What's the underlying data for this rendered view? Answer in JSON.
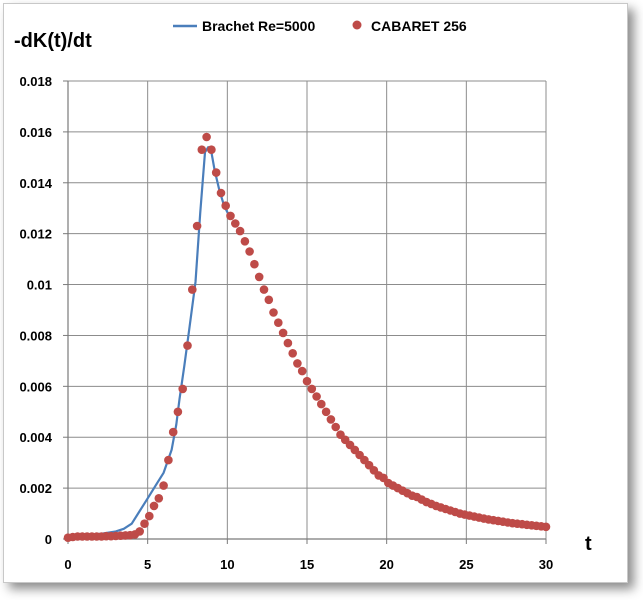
{
  "chart_data": {
    "type": "line",
    "title": "",
    "ylabel": "-dK(t)/dt",
    "xlabel": "t",
    "xlim": [
      0,
      30
    ],
    "ylim": [
      0,
      0.018
    ],
    "x_ticks": [
      0,
      5,
      10,
      15,
      20,
      25,
      30
    ],
    "y_ticks": [
      0,
      0.002,
      0.004,
      0.006,
      0.008,
      0.01,
      0.012,
      0.014,
      0.016,
      0.018
    ],
    "x_tick_labels": [
      "0",
      "5",
      "10",
      "15",
      "20",
      "25",
      "30"
    ],
    "y_tick_labels": [
      "0",
      "0.002",
      "0.004",
      "0.006",
      "0.008",
      "0.01",
      "0.012",
      "0.014",
      "0.016",
      "0.018"
    ],
    "grid": true,
    "legend_position": "top",
    "series": [
      {
        "name": "Brachet Re=5000",
        "style": "line",
        "color": "#4a7ebb",
        "points": [
          [
            0,
            0.0001
          ],
          [
            1,
            0.00015
          ],
          [
            2,
            0.0002
          ],
          [
            3,
            0.0003
          ],
          [
            3.5,
            0.0004
          ],
          [
            4,
            0.0006
          ],
          [
            4.5,
            0.0011
          ],
          [
            5,
            0.0016
          ],
          [
            5.5,
            0.0021
          ],
          [
            6,
            0.0026
          ],
          [
            6.5,
            0.0035
          ],
          [
            6.8,
            0.0045
          ],
          [
            7,
            0.0055
          ],
          [
            7.3,
            0.0068
          ],
          [
            7.6,
            0.0082
          ],
          [
            8,
            0.0101
          ],
          [
            8.3,
            0.0128
          ],
          [
            8.6,
            0.0152
          ],
          [
            8.8,
            0.0154
          ],
          [
            9,
            0.0152
          ],
          [
            9.2,
            0.0145
          ],
          [
            9.5,
            0.0137
          ],
          [
            9.8,
            0.0131
          ],
          [
            10.2,
            0.0126
          ]
        ]
      },
      {
        "name": "CABARET 256",
        "style": "markers",
        "color": "#be4b48",
        "points": [
          [
            0,
            5e-05
          ],
          [
            0.3,
            8e-05
          ],
          [
            0.6,
            0.0001
          ],
          [
            0.9,
            0.0001
          ],
          [
            1.2,
            0.0001
          ],
          [
            1.5,
            0.0001
          ],
          [
            1.8,
            0.0001
          ],
          [
            2.1,
            0.0001
          ],
          [
            2.4,
            0.00011
          ],
          [
            2.7,
            0.00011
          ],
          [
            3.0,
            0.00012
          ],
          [
            3.3,
            0.00013
          ],
          [
            3.6,
            0.00014
          ],
          [
            3.9,
            0.00015
          ],
          [
            4.2,
            0.00018
          ],
          [
            4.5,
            0.0003
          ],
          [
            4.8,
            0.0006
          ],
          [
            5.1,
            0.0009
          ],
          [
            5.4,
            0.0013
          ],
          [
            5.7,
            0.0016
          ],
          [
            6.0,
            0.0021
          ],
          [
            6.3,
            0.0031
          ],
          [
            6.6,
            0.0042
          ],
          [
            6.9,
            0.005
          ],
          [
            7.2,
            0.0059
          ],
          [
            7.5,
            0.0076
          ],
          [
            7.8,
            0.0098
          ],
          [
            8.1,
            0.0123
          ],
          [
            8.4,
            0.0153
          ],
          [
            8.7,
            0.0158
          ],
          [
            9.0,
            0.0153
          ],
          [
            9.3,
            0.0144
          ],
          [
            9.6,
            0.0136
          ],
          [
            9.9,
            0.0131
          ],
          [
            10.2,
            0.0127
          ],
          [
            10.5,
            0.0124
          ],
          [
            10.8,
            0.0121
          ],
          [
            11.1,
            0.0117
          ],
          [
            11.4,
            0.0113
          ],
          [
            11.7,
            0.0108
          ],
          [
            12.0,
            0.0103
          ],
          [
            12.3,
            0.0098
          ],
          [
            12.6,
            0.0094
          ],
          [
            12.9,
            0.0089
          ],
          [
            13.2,
            0.0085
          ],
          [
            13.5,
            0.0081
          ],
          [
            13.8,
            0.0077
          ],
          [
            14.1,
            0.0073
          ],
          [
            14.4,
            0.0069
          ],
          [
            14.7,
            0.0066
          ],
          [
            15.0,
            0.0062
          ],
          [
            15.3,
            0.0059
          ],
          [
            15.6,
            0.0056
          ],
          [
            15.9,
            0.0053
          ],
          [
            16.2,
            0.005
          ],
          [
            16.5,
            0.0047
          ],
          [
            16.8,
            0.0044
          ],
          [
            17.1,
            0.0041
          ],
          [
            17.4,
            0.0039
          ],
          [
            17.7,
            0.0037
          ],
          [
            18.0,
            0.0035
          ],
          [
            18.3,
            0.0033
          ],
          [
            18.6,
            0.0031
          ],
          [
            18.9,
            0.0029
          ],
          [
            19.2,
            0.0027
          ],
          [
            19.5,
            0.0025
          ],
          [
            19.8,
            0.0024
          ],
          [
            20.1,
            0.0022
          ],
          [
            20.4,
            0.0021
          ],
          [
            20.7,
            0.002
          ],
          [
            21.0,
            0.0019
          ],
          [
            21.3,
            0.0018
          ],
          [
            21.6,
            0.0017
          ],
          [
            21.9,
            0.00165
          ],
          [
            22.2,
            0.00155
          ],
          [
            22.5,
            0.00145
          ],
          [
            22.8,
            0.00138
          ],
          [
            23.1,
            0.0013
          ],
          [
            23.4,
            0.00124
          ],
          [
            23.7,
            0.00118
          ],
          [
            24.0,
            0.00112
          ],
          [
            24.3,
            0.00106
          ],
          [
            24.6,
            0.001
          ],
          [
            24.9,
            0.00096
          ],
          [
            25.2,
            0.00092
          ],
          [
            25.5,
            0.00088
          ],
          [
            25.8,
            0.00084
          ],
          [
            26.1,
            0.0008
          ],
          [
            26.4,
            0.00077
          ],
          [
            26.7,
            0.00074
          ],
          [
            27.0,
            0.00071
          ],
          [
            27.3,
            0.00068
          ],
          [
            27.6,
            0.00065
          ],
          [
            27.9,
            0.00062
          ],
          [
            28.2,
            0.0006
          ],
          [
            28.5,
            0.00058
          ],
          [
            28.8,
            0.00056
          ],
          [
            29.1,
            0.00054
          ],
          [
            29.4,
            0.00052
          ],
          [
            29.7,
            0.0005
          ],
          [
            30.0,
            0.00048
          ]
        ]
      }
    ]
  }
}
